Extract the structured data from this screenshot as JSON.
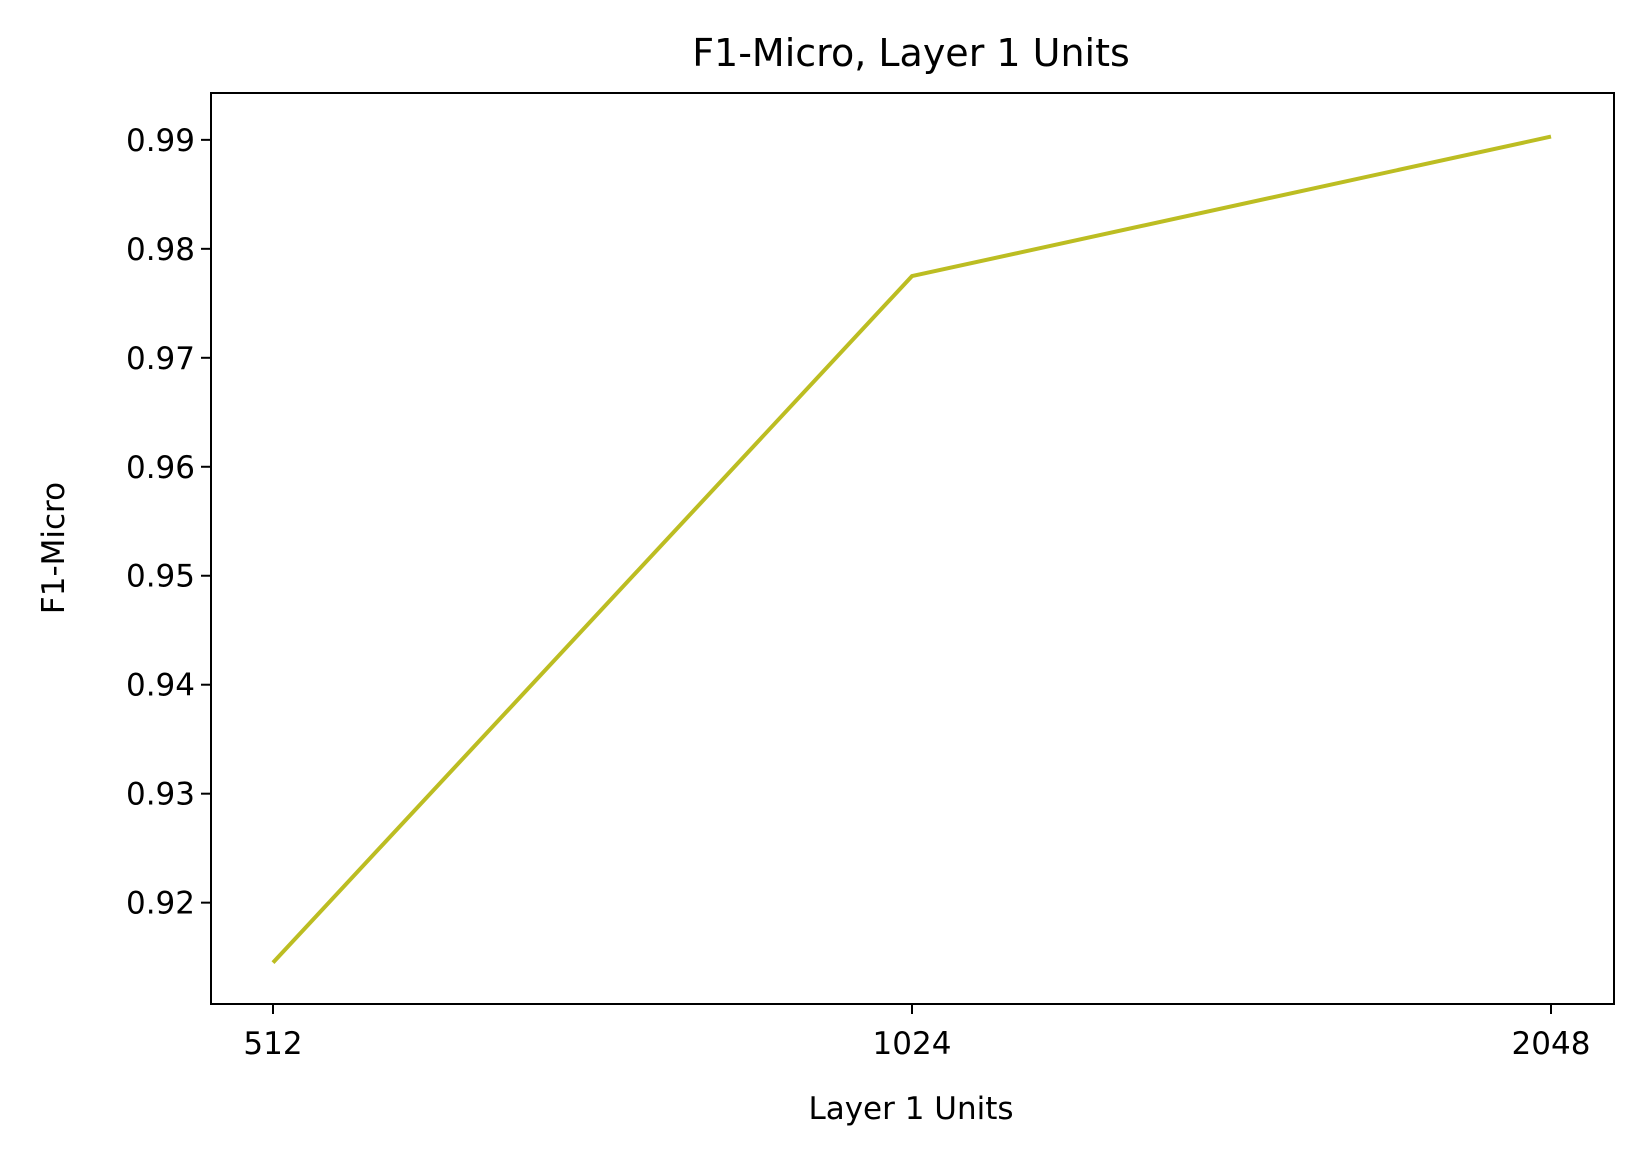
{
  "chart_data": {
    "type": "line",
    "title": "F1-Micro, Layer 1 Units",
    "xlabel": "Layer 1 Units",
    "ylabel": "F1-Micro",
    "categories": [
      "512",
      "1024",
      "2048"
    ],
    "series": [
      {
        "values": [
          0.9145,
          0.9775,
          0.9903
        ],
        "color": "#bcbd22"
      }
    ],
    "yticks": [
      "0.92",
      "0.93",
      "0.94",
      "0.95",
      "0.96",
      "0.97",
      "0.98",
      "0.99"
    ],
    "ylim": [
      0.9107,
      0.9943
    ],
    "grid": false,
    "legend": "none"
  }
}
